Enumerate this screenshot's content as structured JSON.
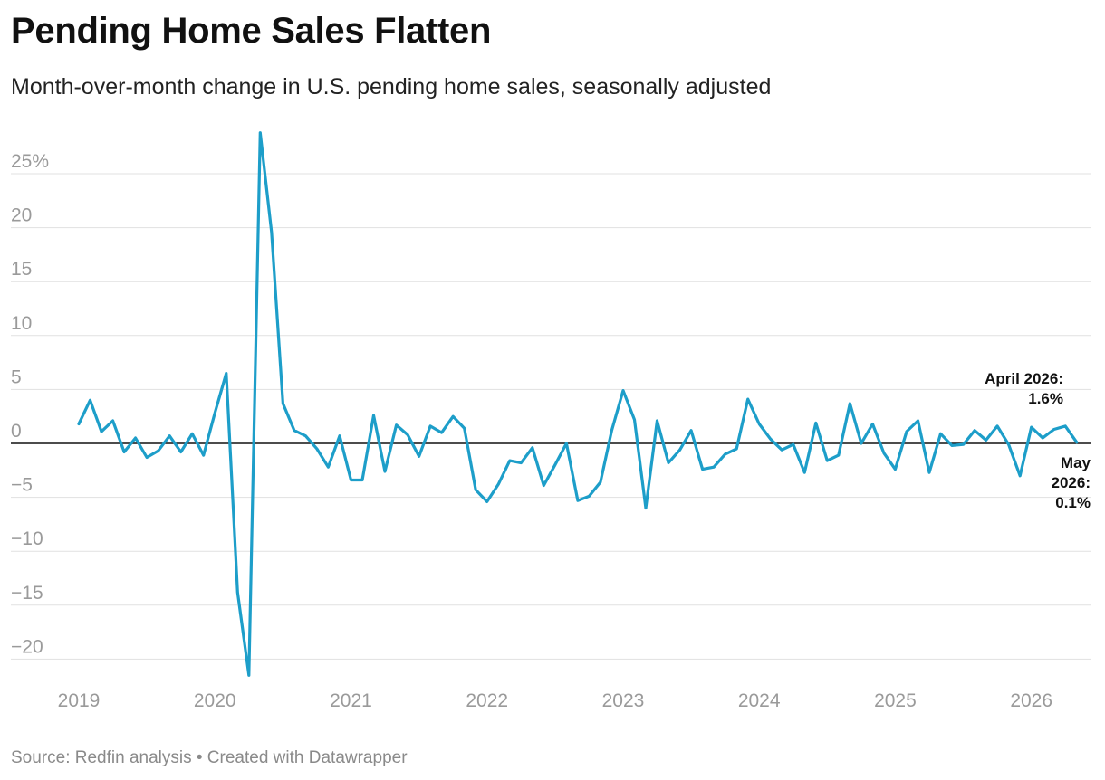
{
  "header": {
    "title": "Pending Home Sales Flatten",
    "subtitle": "Month-over-month change in U.S. pending home sales, seasonally adjusted"
  },
  "footer": {
    "source": "Source: Redfin analysis • Created with Datawrapper"
  },
  "colors": {
    "line": "#1d9ec9",
    "grid": "#e1e1e1",
    "zero_line": "#111111",
    "tick_text": "#9a9a9a"
  },
  "chart_data": {
    "type": "line",
    "title": "Pending Home Sales Flatten",
    "subtitle": "Month-over-month change in U.S. pending home sales, seasonally adjusted",
    "xlabel": "",
    "ylabel": "",
    "x_start": "2019-01",
    "x_ticks": [
      "2019",
      "2020",
      "2021",
      "2022",
      "2023",
      "2024",
      "2025",
      "2026"
    ],
    "y_ticks": [
      25,
      20,
      15,
      10,
      5,
      0,
      -5,
      -10,
      -15,
      -20
    ],
    "y_tick_labels": [
      "25%",
      "20",
      "15",
      "10",
      "5",
      "0",
      "−5",
      "−10",
      "−15",
      "−20"
    ],
    "ylim": [
      -22,
      29
    ],
    "grid": true,
    "series": [
      {
        "values": [
          1.8,
          4.0,
          1.1,
          2.1,
          -0.8,
          0.5,
          -1.3,
          -0.7,
          0.7,
          -0.8,
          0.9,
          -1.1,
          2.8,
          6.5,
          -13.8,
          -21.5,
          28.8,
          19.6,
          3.7,
          1.2,
          0.7,
          -0.5,
          -2.2,
          0.7,
          -3.4,
          -3.4,
          2.6,
          -2.6,
          1.7,
          0.8,
          -1.2,
          1.6,
          1.0,
          2.5,
          1.4,
          -4.3,
          -5.4,
          -3.8,
          -1.6,
          -1.8,
          -0.4,
          -3.9,
          -2.0,
          0.0,
          -5.3,
          -4.9,
          -3.6,
          1.2,
          4.9,
          2.2,
          -6.0,
          2.1,
          -1.8,
          -0.6,
          1.2,
          -2.4,
          -2.2,
          -1.0,
          -0.5,
          4.1,
          1.8,
          0.4,
          -0.6,
          -0.1,
          -2.7,
          1.9,
          -1.6,
          -1.1,
          3.7,
          0.0,
          1.8,
          -0.9,
          -2.4,
          1.1,
          2.1,
          -2.7,
          0.9,
          -0.2,
          -0.1,
          1.2,
          0.3,
          1.6,
          -0.1,
          -3.0,
          1.5,
          0.5,
          1.3,
          1.6,
          0.1
        ]
      }
    ],
    "annotations": [
      {
        "lines": [
          "April 2026:",
          "1.6%"
        ],
        "x": "2026-04",
        "y": 1.6
      },
      {
        "lines": [
          "May",
          "2026:",
          "0.1%"
        ],
        "x": "2026-05",
        "y": 0.1
      }
    ]
  }
}
